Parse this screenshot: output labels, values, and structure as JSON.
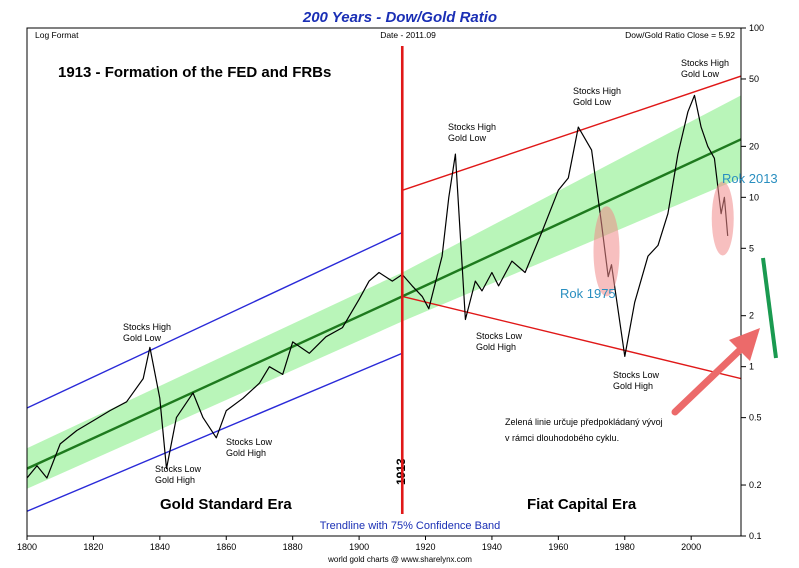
{
  "chart_data": {
    "type": "line",
    "title": "200 Years - Dow/Gold Ratio",
    "header_left": "Log Format",
    "header_center": "Date - 2011.09",
    "header_right": "Dow/Gold Ratio Close = 5.92",
    "scale": "log",
    "ylim": [
      0.1,
      100
    ],
    "xlim": [
      1800,
      2015
    ],
    "y_ticks": [
      "100",
      "50",
      "20",
      "10",
      "5",
      "2",
      "1",
      "0.5",
      "0.2",
      "0.1"
    ],
    "y_tick_values": [
      100,
      50,
      20,
      10,
      5,
      2,
      1,
      0.5,
      0.2,
      0.1
    ],
    "x_ticks": [
      "1800",
      "1820",
      "1840",
      "1860",
      "1880",
      "1900",
      "1920",
      "1940",
      "1960",
      "1980",
      "2000"
    ],
    "x_tick_values": [
      1800,
      1820,
      1840,
      1860,
      1880,
      1900,
      1920,
      1940,
      1960,
      1980,
      2000
    ],
    "grid": false,
    "legend": "none",
    "series": [
      {
        "x": [
          1800,
          1803,
          1806,
          1810,
          1815,
          1820,
          1825,
          1830,
          1835,
          1837,
          1840,
          1842,
          1845,
          1850,
          1853,
          1857,
          1860,
          1865,
          1870,
          1873,
          1877,
          1880,
          1885,
          1890,
          1895,
          1900,
          1903,
          1906,
          1910,
          1913,
          1916,
          1919,
          1921,
          1925,
          1927,
          1929,
          1932,
          1935,
          1937,
          1940,
          1942,
          1946,
          1950,
          1955,
          1960,
          1963,
          1966,
          1970,
          1973,
          1975,
          1976,
          1980,
          1983,
          1987,
          1990,
          1993,
          1996,
          1999,
          2001,
          2003,
          2005,
          2007,
          2009,
          2010,
          2011
        ],
        "y": [
          0.22,
          0.26,
          0.22,
          0.35,
          0.42,
          0.48,
          0.55,
          0.62,
          0.85,
          1.3,
          0.65,
          0.25,
          0.5,
          0.7,
          0.5,
          0.38,
          0.55,
          0.65,
          0.8,
          1.0,
          0.9,
          1.4,
          1.2,
          1.5,
          1.7,
          2.5,
          3.2,
          3.6,
          3.2,
          3.5,
          3.0,
          2.6,
          2.2,
          4.5,
          10.0,
          18.0,
          1.9,
          3.2,
          2.8,
          3.6,
          3.0,
          4.2,
          3.6,
          6.2,
          11.0,
          13.0,
          26.0,
          19.0,
          7.0,
          3.4,
          4.0,
          1.15,
          2.4,
          4.5,
          5.2,
          8.0,
          18.0,
          32.0,
          40.0,
          26.0,
          20.0,
          17.0,
          8.0,
          10.0,
          5.92
        ]
      }
    ],
    "annotations": {
      "headline": "1913 - Formation of the FED and FRBs",
      "stocks_high_1": [
        "Stocks High",
        "Gold Low"
      ],
      "stocks_low_1": [
        "Stocks Low",
        "Gold High"
      ],
      "stocks_low_2": [
        "Stocks Low",
        "Gold High"
      ],
      "stocks_high_2": [
        "Stocks High",
        "Gold Low"
      ],
      "stocks_low_3": [
        "Stocks Low",
        "Gold High"
      ],
      "stocks_high_3": [
        "Stocks High",
        "Gold Low"
      ],
      "stocks_low_4": [
        "Stocks Low",
        "Gold High"
      ],
      "stocks_high_4": [
        "Stocks High",
        "Gold Low"
      ],
      "rok_1975": "Rok 1975",
      "rok_2013": "Rok 2013",
      "czech_note": [
        "Zelená linie určuje předpokládaný vývoj",
        "v rámci dlouhodobého cyklu."
      ],
      "year_1913": "1913",
      "era_left": "Gold Standard Era",
      "era_right": "Fiat Capital Era",
      "trend_note": "Trendline with 75% Confidence Band",
      "source": "world gold charts @ www.sharelynx.com"
    },
    "colors": {
      "title": "#1a2fb5",
      "line": "#000000",
      "trend": "#1e7a1e",
      "band": "#b9f5b9",
      "channel_pre": "#2a2ad8",
      "channel_post": "#e01818",
      "vline": "#e01818",
      "rok_text": "#2a8fc0",
      "highlight": "#f08a8a",
      "forecast": "#1a9a50",
      "arrow": "#ec6a6a"
    }
  }
}
